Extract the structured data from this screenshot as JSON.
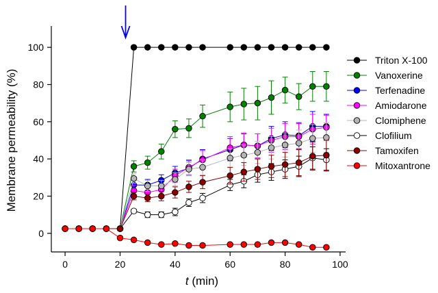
{
  "chart_data": {
    "type": "line",
    "xlabel_var": "t",
    "xlabel_unit": " (min)",
    "ylabel": "Membrane permeability (%)",
    "xlim": [
      -5,
      102
    ],
    "ylim": [
      -10,
      110
    ],
    "xticks": [
      0,
      20,
      40,
      60,
      80,
      100
    ],
    "yticks": [
      0,
      20,
      40,
      60,
      80,
      100
    ],
    "annotation": {
      "type": "arrow",
      "x": 22,
      "color": "#0000ff"
    },
    "legend_position": "right",
    "x": [
      0,
      5,
      10,
      15,
      20,
      25,
      30,
      35,
      40,
      45,
      50,
      60,
      65,
      70,
      75,
      80,
      85,
      90,
      95
    ],
    "series": [
      {
        "name": "Triton X-100",
        "color": "#000000",
        "x": [
          0,
          5,
          10,
          15,
          20,
          25,
          30,
          35,
          40,
          45,
          50,
          60,
          65,
          70,
          75,
          80,
          85,
          90,
          95
        ],
        "values": [
          2.5,
          2.5,
          2.5,
          2.5,
          2.5,
          100,
          100,
          100,
          100,
          100,
          100,
          100,
          100,
          100,
          100,
          100,
          100,
          100,
          100
        ],
        "errors": [
          0,
          0,
          0,
          0,
          0,
          0,
          0,
          0,
          0,
          0,
          0,
          0,
          0,
          0,
          0,
          0,
          0,
          0,
          0
        ]
      },
      {
        "name": "Vanoxerine",
        "color": "#008000",
        "x": [
          0,
          5,
          10,
          15,
          20,
          25,
          30,
          35,
          40,
          45,
          50,
          60,
          65,
          70,
          75,
          80,
          85,
          90,
          95
        ],
        "values": [
          2.5,
          2.5,
          2.5,
          2.5,
          2.5,
          36,
          38,
          44,
          56,
          56.5,
          63,
          68,
          69.5,
          70,
          73,
          77,
          73.5,
          79,
          79
        ],
        "errors": [
          0,
          0,
          0,
          0,
          0,
          3,
          3.5,
          4,
          4.5,
          5,
          6,
          8,
          8.5,
          9,
          9,
          7,
          7,
          8,
          8
        ]
      },
      {
        "name": "Terfenadine",
        "color": "#0000ff",
        "x": [
          0,
          5,
          10,
          15,
          20,
          25,
          30,
          35,
          40,
          45,
          50,
          60,
          65,
          70,
          75,
          80,
          85,
          90,
          95
        ],
        "values": [
          2.5,
          2.5,
          2.5,
          2.5,
          2.5,
          26,
          26,
          28.5,
          32.5,
          35,
          40,
          45,
          47.5,
          47,
          51,
          53,
          52.5,
          57.5,
          57.5
        ],
        "errors": [
          0,
          0,
          0,
          0,
          0,
          3,
          3,
          3,
          3.5,
          4,
          5,
          6,
          6,
          6.5,
          6.5,
          7,
          7,
          8,
          6.5
        ]
      },
      {
        "name": "Amiodarone",
        "color": "#ff00ff",
        "x": [
          0,
          5,
          10,
          15,
          20,
          25,
          30,
          35,
          40,
          45,
          50,
          60,
          65,
          70,
          75,
          80,
          85,
          90,
          95
        ],
        "values": [
          2.5,
          2.5,
          2.5,
          2.5,
          2.5,
          23,
          22,
          23.5,
          31,
          35.5,
          39.5,
          46,
          47.5,
          47,
          50,
          52,
          52,
          56,
          57
        ],
        "errors": [
          0,
          0,
          0,
          0,
          0,
          3,
          3,
          3,
          3.5,
          4,
          5,
          6,
          6.5,
          6.5,
          6.5,
          7,
          7,
          8,
          6.5
        ]
      },
      {
        "name": "Clomiphene",
        "color": "#b4b4b4",
        "x": [
          0,
          5,
          10,
          15,
          20,
          25,
          30,
          35,
          40,
          45,
          50,
          60,
          65,
          70,
          75,
          80,
          85,
          90,
          95
        ],
        "values": [
          2.5,
          2.5,
          2.5,
          2.5,
          2.5,
          29.5,
          25.5,
          25.5,
          29,
          34.5,
          35.5,
          40.5,
          42,
          43.5,
          46,
          47.5,
          48.5,
          51,
          51.5
        ],
        "errors": [
          0,
          0,
          0,
          0,
          0,
          2.5,
          3,
          3,
          3.5,
          3.5,
          4,
          5,
          5.5,
          6,
          6,
          6.5,
          7,
          7.5,
          8
        ]
      },
      {
        "name": "Clofilium",
        "color": "#ffffff",
        "x": [
          0,
          5,
          10,
          15,
          20,
          25,
          30,
          35,
          40,
          45,
          50,
          60,
          65,
          70,
          75,
          80,
          85,
          90,
          95
        ],
        "values": [
          2.5,
          2.5,
          2.5,
          2.5,
          2.5,
          12,
          10,
          10,
          11.5,
          16.5,
          19,
          26,
          28,
          31.5,
          33,
          34.5,
          36,
          40.5,
          39.5
        ],
        "errors": [
          0,
          0,
          0,
          0,
          0,
          1,
          1.5,
          1.5,
          2,
          2,
          2.5,
          3,
          3.5,
          4,
          4.5,
          5,
          5.5,
          6,
          6
        ]
      },
      {
        "name": "Tamoxifen",
        "color": "#8b0000",
        "x": [
          0,
          5,
          10,
          15,
          20,
          25,
          30,
          35,
          40,
          45,
          50,
          60,
          65,
          70,
          75,
          80,
          85,
          90,
          95
        ],
        "values": [
          2.5,
          2.5,
          2.5,
          2.5,
          2.5,
          20,
          19,
          20,
          22,
          25,
          27.5,
          31,
          33,
          34.5,
          36,
          37,
          38,
          41.5,
          42
        ],
        "errors": [
          0,
          0,
          0,
          0,
          0,
          2,
          2,
          2.5,
          3,
          3,
          3.5,
          4.5,
          5,
          5.5,
          6,
          6.5,
          7,
          7.5,
          8
        ]
      },
      {
        "name": "Mitoxantrone",
        "color": "#ff0000",
        "x": [
          0,
          5,
          10,
          15,
          20,
          25,
          30,
          35,
          40,
          45,
          50,
          60,
          65,
          70,
          75,
          80,
          85,
          90,
          95
        ],
        "values": [
          2.5,
          2.5,
          2.5,
          2.5,
          -2.5,
          -3.5,
          -5,
          -6,
          -5.5,
          -6.5,
          -6.5,
          -6,
          -6,
          -6,
          -5,
          -5,
          -6,
          -7.5,
          -7.5
        ],
        "errors": [
          0,
          0,
          0,
          0,
          0,
          0,
          0,
          0,
          0,
          0,
          0,
          0,
          0,
          0,
          0,
          0,
          0,
          0,
          0
        ]
      }
    ]
  }
}
